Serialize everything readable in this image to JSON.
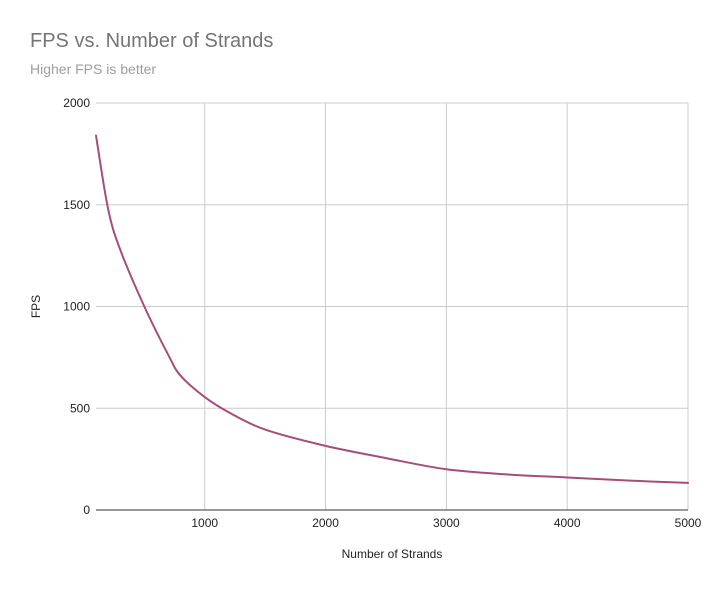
{
  "chart_data": {
    "type": "line",
    "title": "FPS vs. Number of Strands",
    "subtitle": "Higher FPS is better",
    "xlabel": "Number of Strands",
    "ylabel": "FPS",
    "xlim": [
      100,
      5000
    ],
    "ylim": [
      0,
      2000
    ],
    "xticks": [
      1000,
      2000,
      3000,
      4000,
      5000
    ],
    "yticks": [
      0,
      500,
      1000,
      1500,
      2000
    ],
    "grid": true,
    "legend": "none",
    "series": [
      {
        "color": "#a64d79",
        "x": [
          100,
          200,
          300,
          500,
          700,
          800,
          1000,
          1200,
          1500,
          2000,
          2500,
          3000,
          3500,
          4000,
          4500,
          5000
        ],
        "y": [
          1840,
          1480,
          1280,
          1000,
          760,
          660,
          555,
          480,
          395,
          315,
          255,
          200,
          175,
          160,
          145,
          133
        ]
      }
    ]
  }
}
